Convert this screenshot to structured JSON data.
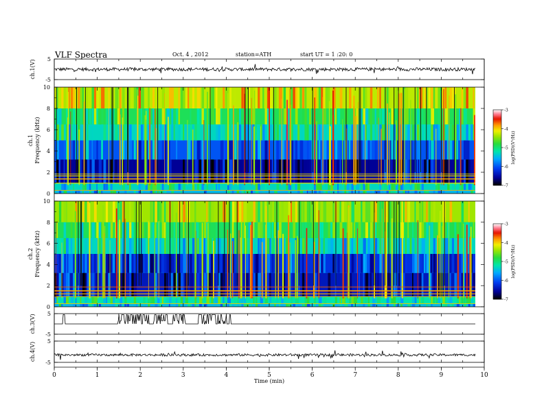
{
  "header": {
    "title": "VLF Spectra",
    "date": "Oct. 4 , 2012",
    "station": "station=ATH",
    "start": "start UT = 1 :20: 0"
  },
  "chart_data": [
    {
      "type": "line",
      "name": "channel-1-waveform",
      "ylabel": "ch.1(V)",
      "ylim": [
        -5,
        5
      ],
      "yticks": [
        "5",
        "-5"
      ],
      "xlim": [
        0,
        10
      ],
      "x": [
        0,
        9.8
      ],
      "series": [
        {
          "baseline": 0,
          "amplitude": 1
        }
      ]
    },
    {
      "type": "heatmap",
      "name": "channel-1-spectrogram",
      "ylabel": "ch.1\nFrequency (kHz)",
      "ylabel_lines": [
        "ch.1",
        "Frequency (kHz)"
      ],
      "ylim": [
        0,
        10
      ],
      "yticks": [
        "0",
        "2",
        "4",
        "6",
        "8",
        "10"
      ],
      "xlim": [
        0,
        9.8
      ],
      "colorbar": {
        "label": "log(PSD)(V²/Hz)",
        "range": [
          -7,
          -3
        ],
        "ticks": [
          "-3",
          "-4",
          "-5",
          "-6",
          "-7"
        ]
      },
      "bands": [
        {
          "from": 0,
          "to": 0.3,
          "level": -5.5
        },
        {
          "from": 0.3,
          "to": 1.0,
          "level": -5.3
        },
        {
          "from": 1.0,
          "to": 3.2,
          "level": -6.6
        },
        {
          "from": 3.2,
          "to": 5.0,
          "level": -6.0
        },
        {
          "from": 5.0,
          "to": 6.5,
          "level": -5.3
        },
        {
          "from": 6.5,
          "to": 8.0,
          "level": -4.9
        },
        {
          "from": 8.0,
          "to": 10.0,
          "level": -4.3
        }
      ]
    },
    {
      "type": "heatmap",
      "name": "channel-2-spectrogram",
      "ylabel": "ch.2\nFrequency (kHz)",
      "ylabel_lines": [
        "ch.2",
        "Frequency (kHz)"
      ],
      "ylim": [
        0,
        10
      ],
      "yticks": [
        "0",
        "2",
        "4",
        "6",
        "8",
        "10"
      ],
      "xlim": [
        0,
        9.8
      ],
      "colorbar": {
        "label": "log(PSD)(V²/Hz)",
        "range": [
          -7,
          -3
        ],
        "ticks": [
          "-3",
          "-4",
          "-5",
          "-6",
          "-7"
        ]
      },
      "bands": [
        {
          "from": 0,
          "to": 0.3,
          "level": -5.5
        },
        {
          "from": 0.3,
          "to": 1.0,
          "level": -5.2
        },
        {
          "from": 1.0,
          "to": 3.2,
          "level": -6.4
        },
        {
          "from": 3.2,
          "to": 5.0,
          "level": -6.2
        },
        {
          "from": 5.0,
          "to": 6.5,
          "level": -5.3
        },
        {
          "from": 6.5,
          "to": 8.0,
          "level": -4.9
        },
        {
          "from": 8.0,
          "to": 10.0,
          "level": -4.4
        }
      ]
    },
    {
      "type": "line",
      "name": "channel-3-waveform",
      "ylabel": "ch.3(V)",
      "ylim": [
        -5,
        5
      ],
      "yticks": [
        "5",
        "-5"
      ],
      "baseline": 0,
      "pulses": [
        [
          0.2,
          0.25
        ],
        [
          1.45,
          2.2
        ],
        [
          2.3,
          2.65
        ],
        [
          2.75,
          3.05
        ],
        [
          3.35,
          4.1
        ]
      ]
    },
    {
      "type": "line",
      "name": "channel-4-waveform",
      "ylabel": "ch.4(V)",
      "ylim": [
        -5,
        5
      ],
      "yticks": [
        "5",
        "-5"
      ],
      "baseline": -1.5
    },
    {
      "type": "axis",
      "name": "time-axis",
      "xlabel": "Time (min)",
      "xlim": [
        0,
        10
      ],
      "xticks": [
        "0",
        "1",
        "2",
        "3",
        "4",
        "5",
        "6",
        "7",
        "8",
        "9",
        "10"
      ]
    }
  ]
}
